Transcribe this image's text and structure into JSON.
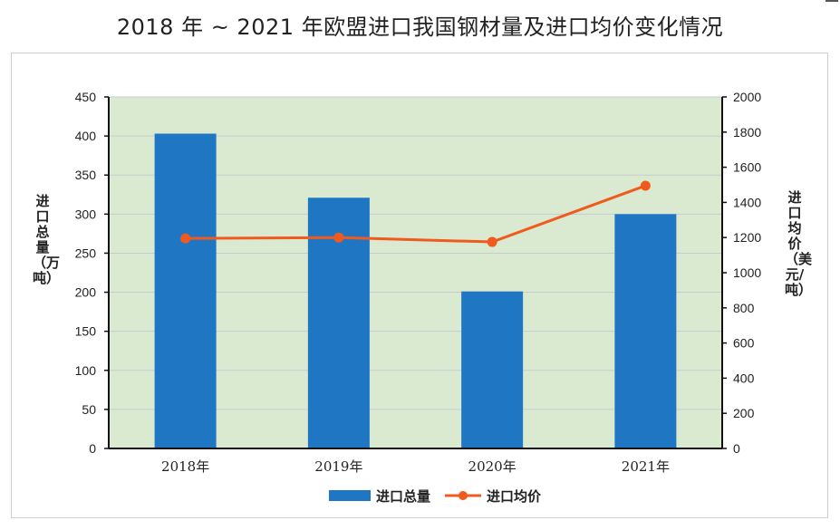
{
  "title": "2018 年 ~ 2021 年欧盟进口我国钢材量及进口均价变化情况",
  "chart_data": {
    "type": "bar",
    "categories": [
      "2018年",
      "2019年",
      "2020年",
      "2021年"
    ],
    "series": [
      {
        "name": "进口总量",
        "type": "bar",
        "axis": "left",
        "color": "#1f77c4",
        "values": [
          403,
          321,
          201,
          300
        ]
      },
      {
        "name": "进口均价",
        "type": "line",
        "axis": "right",
        "color": "#f05a1c",
        "values": [
          1195,
          1200,
          1175,
          1495
        ]
      }
    ],
    "ylabel_left": "进口总量（万吨）",
    "ylabel_right": "进口均价（美元/吨）",
    "ylim_left": [
      0,
      450
    ],
    "ylim_right": [
      0,
      2000
    ],
    "yticks_left": [
      0,
      50,
      100,
      150,
      200,
      250,
      300,
      350,
      400,
      450
    ],
    "yticks_right": [
      0,
      200,
      400,
      600,
      800,
      1000,
      1200,
      1400,
      1600,
      1800,
      2000
    ],
    "plot_background": "#d9ead0",
    "grid": true,
    "legend_position": "bottom"
  }
}
